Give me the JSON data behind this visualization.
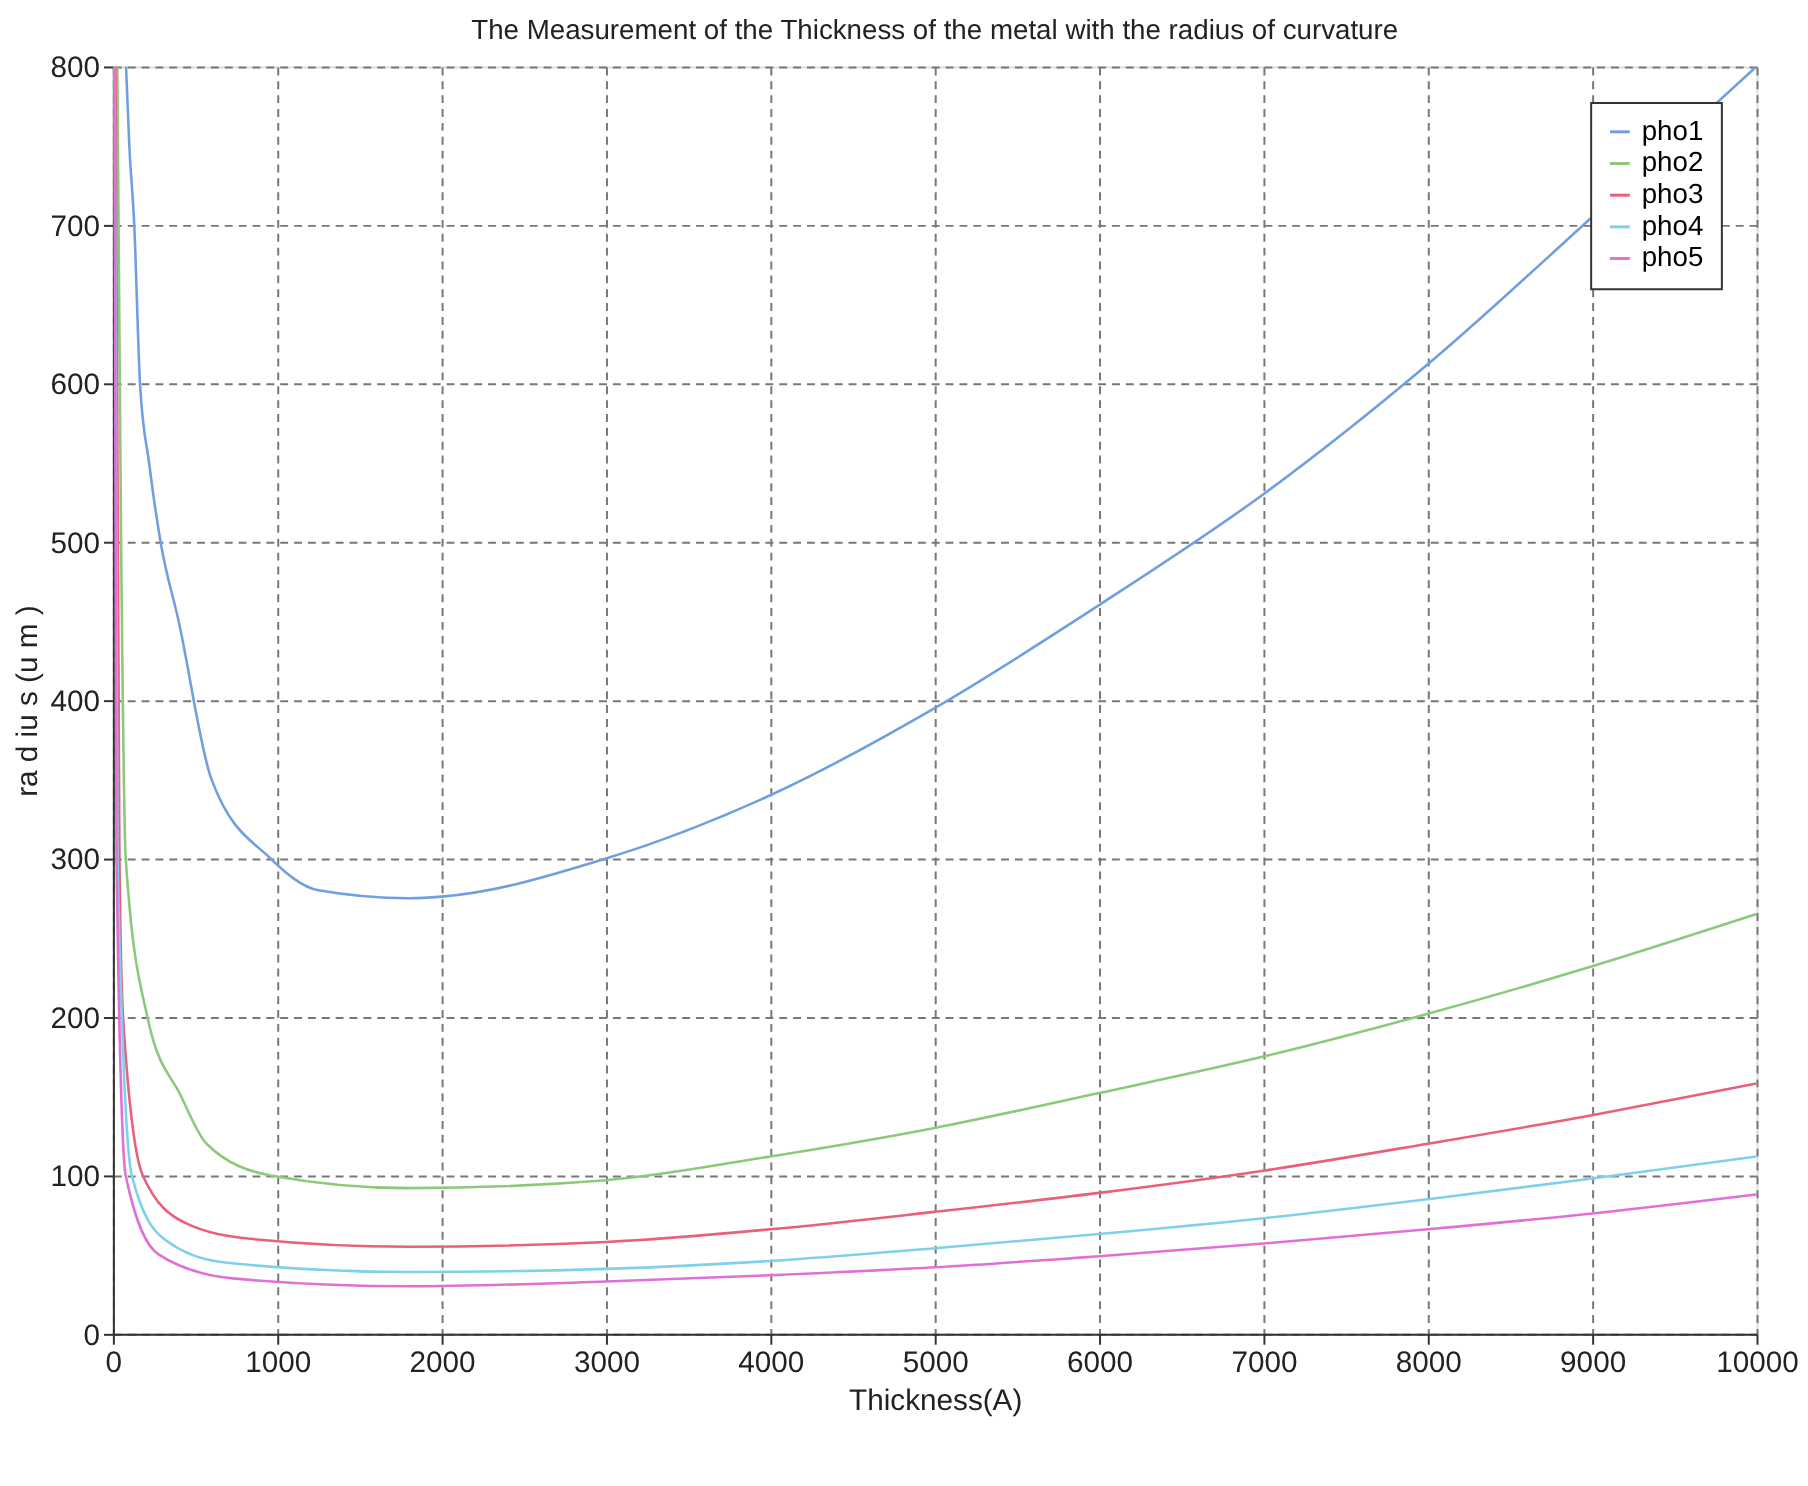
{
  "chart_data": {
    "type": "line",
    "title": "The Measurement of the Thickness of the metal with the radius of curvature",
    "xlabel": "Thickness(A)",
    "ylabel": "ra d iu s (u m )",
    "xlim": [
      0,
      10000
    ],
    "ylim": [
      0,
      800
    ],
    "xticks": [
      0,
      1000,
      2000,
      3000,
      4000,
      5000,
      6000,
      7000,
      8000,
      9000,
      10000
    ],
    "yticks": [
      0,
      100,
      200,
      300,
      400,
      500,
      600,
      700,
      800
    ],
    "grid": true,
    "legend": "top right",
    "marker": "none",
    "line_style": "solid",
    "series": [
      {
        "name": "pho1",
        "color": "#6f9fe0",
        "x": [
          80,
          100,
          130,
          165,
          220,
          290,
          400,
          600,
          960,
          1250,
          1800,
          2000,
          3000,
          4000,
          5000,
          6000,
          7000,
          8000,
          9000,
          10000
        ],
        "values": [
          800,
          750,
          700,
          600,
          550,
          500,
          450,
          350,
          300,
          280,
          275,
          276,
          300,
          340,
          395,
          460,
          530,
          612,
          705,
          800
        ]
      },
      {
        "name": "pho2",
        "color": "#8cc97a",
        "x": [
          27,
          50,
          78,
          210,
          415,
          570,
          960,
          1800,
          3000,
          4000,
          5000,
          6000,
          7000,
          8000,
          9000,
          10000
        ],
        "values": [
          800,
          500,
          300,
          200,
          150,
          120,
          100,
          92,
          97,
          112,
          130,
          152,
          175,
          202,
          232,
          265
        ]
      },
      {
        "name": "pho3",
        "color": "#e8607a",
        "x": [
          16,
          40,
          62,
          182,
          440,
          835,
          1800,
          3000,
          4000,
          5000,
          6000,
          7000,
          8000,
          9000,
          10000
        ],
        "values": [
          800,
          300,
          200,
          100,
          70,
          60,
          55,
          58,
          66,
          77,
          89,
          103,
          120,
          138,
          158
        ]
      },
      {
        "name": "pho4",
        "color": "#7fd0ea",
        "x": [
          11,
          28,
          115,
          310,
          680,
          1800,
          3000,
          4000,
          5000,
          6000,
          7000,
          8000,
          9000,
          10000
        ],
        "values": [
          800,
          300,
          100,
          60,
          45,
          39,
          41,
          46,
          54,
          63,
          73,
          85,
          98,
          112
        ]
      },
      {
        "name": "pho5",
        "color": "#e070d8",
        "x": [
          9,
          22,
          78,
          280,
          730,
          1800,
          3000,
          4000,
          5000,
          6000,
          7000,
          8000,
          9000,
          10000
        ],
        "values": [
          800,
          300,
          100,
          50,
          35,
          30,
          33,
          37,
          42,
          49,
          57,
          66,
          76,
          88
        ]
      }
    ]
  }
}
